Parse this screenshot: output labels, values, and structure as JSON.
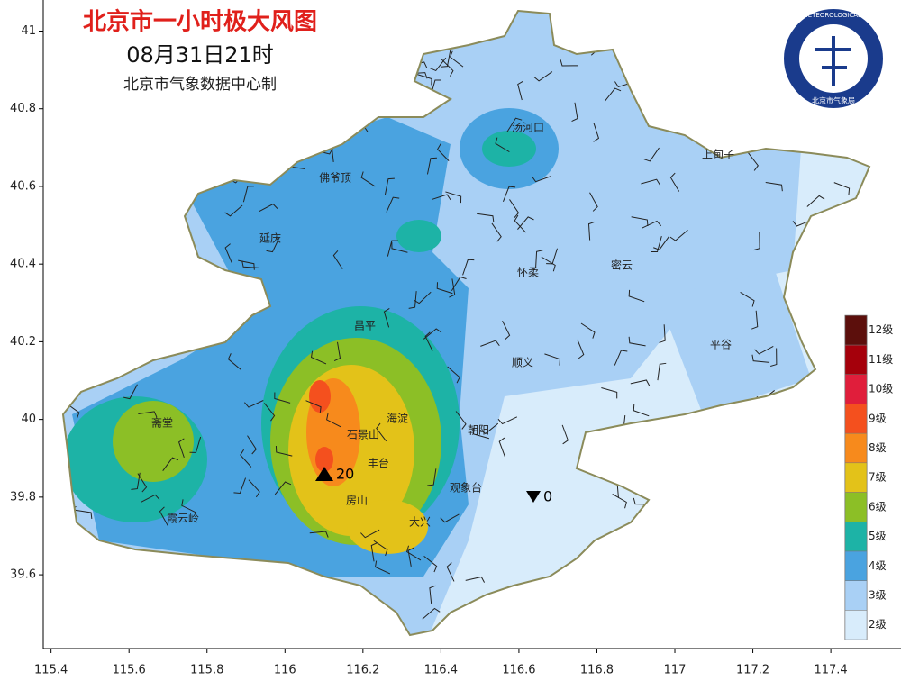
{
  "chart_data": {
    "type": "map",
    "title": "北京市一小时极大风图",
    "subtitle": "08月31日21时",
    "source": "北京市气象数据中心制",
    "logo": {
      "ring": "BEIJING METEOROLOGICAL SERVICE",
      "org": "北京市气象局"
    },
    "xlim": [
      115.38,
      117.58
    ],
    "ylim": [
      39.41,
      41.08
    ],
    "xticks": [
      115.4,
      115.6,
      115.8,
      116,
      116.2,
      116.4,
      116.6,
      116.8,
      117,
      117.2,
      117.4
    ],
    "yticks": [
      39.6,
      39.8,
      40,
      40.2,
      40.4,
      40.6,
      40.8,
      41
    ],
    "legend": {
      "levels": [
        "2级",
        "3级",
        "4级",
        "5级",
        "6级",
        "7级",
        "8级",
        "9级",
        "10级",
        "11级",
        "12级"
      ],
      "colors": [
        "#d8ecfb",
        "#a9d0f5",
        "#4aa3e0",
        "#1db3a6",
        "#8cbf26",
        "#e3c219",
        "#f78a1c",
        "#f4501e",
        "#e01e3b",
        "#a5000b",
        "#5c0f0c"
      ]
    },
    "places": [
      "汤河口",
      "上甸子",
      "佛爷顶",
      "延庆",
      "怀柔",
      "密云",
      "昌平",
      "平谷",
      "顺义",
      "海淀",
      "朝阳",
      "斋堂",
      "石景山",
      "丰台",
      "观象台",
      "房山",
      "大兴",
      "霞云岭"
    ],
    "max_station": {
      "value": 20
    },
    "min_station": {
      "value": 0
    }
  }
}
